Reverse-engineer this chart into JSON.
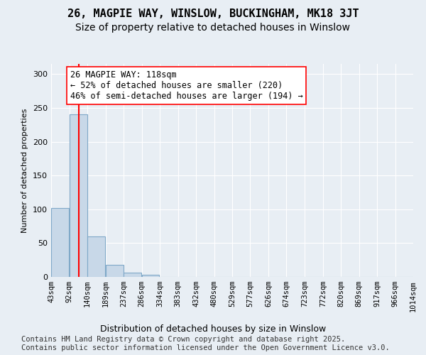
{
  "title": "26, MAGPIE WAY, WINSLOW, BUCKINGHAM, MK18 3JT",
  "subtitle": "Size of property relative to detached houses in Winslow",
  "xlabel": "Distribution of detached houses by size in Winslow",
  "ylabel": "Number of detached properties",
  "bar_color": "#c8d8e8",
  "bar_edge_color": "#7fa8c8",
  "vline_x": 118,
  "vline_color": "red",
  "annotation_text": "26 MAGPIE WAY: 118sqm\n← 52% of detached houses are smaller (220)\n46% of semi-detached houses are larger (194) →",
  "annotation_box_color": "white",
  "annotation_border_color": "red",
  "bin_edges": [
    43,
    92,
    140,
    189,
    237,
    286,
    334,
    383,
    432,
    480,
    529,
    577,
    626,
    674,
    723,
    772,
    820,
    869,
    917,
    966,
    1014
  ],
  "bin_labels": [
    "43sqm",
    "92sqm",
    "140sqm",
    "189sqm",
    "237sqm",
    "286sqm",
    "334sqm",
    "383sqm",
    "432sqm",
    "480sqm",
    "529sqm",
    "577sqm",
    "626sqm",
    "674sqm",
    "723sqm",
    "772sqm",
    "820sqm",
    "869sqm",
    "917sqm",
    "966sqm",
    "1014sqm"
  ],
  "bar_heights": [
    102,
    240,
    60,
    18,
    6,
    3,
    0,
    0,
    0,
    0,
    0,
    0,
    0,
    0,
    0,
    0,
    0,
    0,
    0,
    0
  ],
  "ylim": [
    0,
    315
  ],
  "yticks": [
    0,
    50,
    100,
    150,
    200,
    250,
    300
  ],
  "background_color": "#e8eef4",
  "plot_bg_color": "#e8eef4",
  "footer_text": "Contains HM Land Registry data © Crown copyright and database right 2025.\nContains public sector information licensed under the Open Government Licence v3.0.",
  "title_fontsize": 11,
  "subtitle_fontsize": 10,
  "annotation_fontsize": 8.5,
  "footer_fontsize": 7.5
}
